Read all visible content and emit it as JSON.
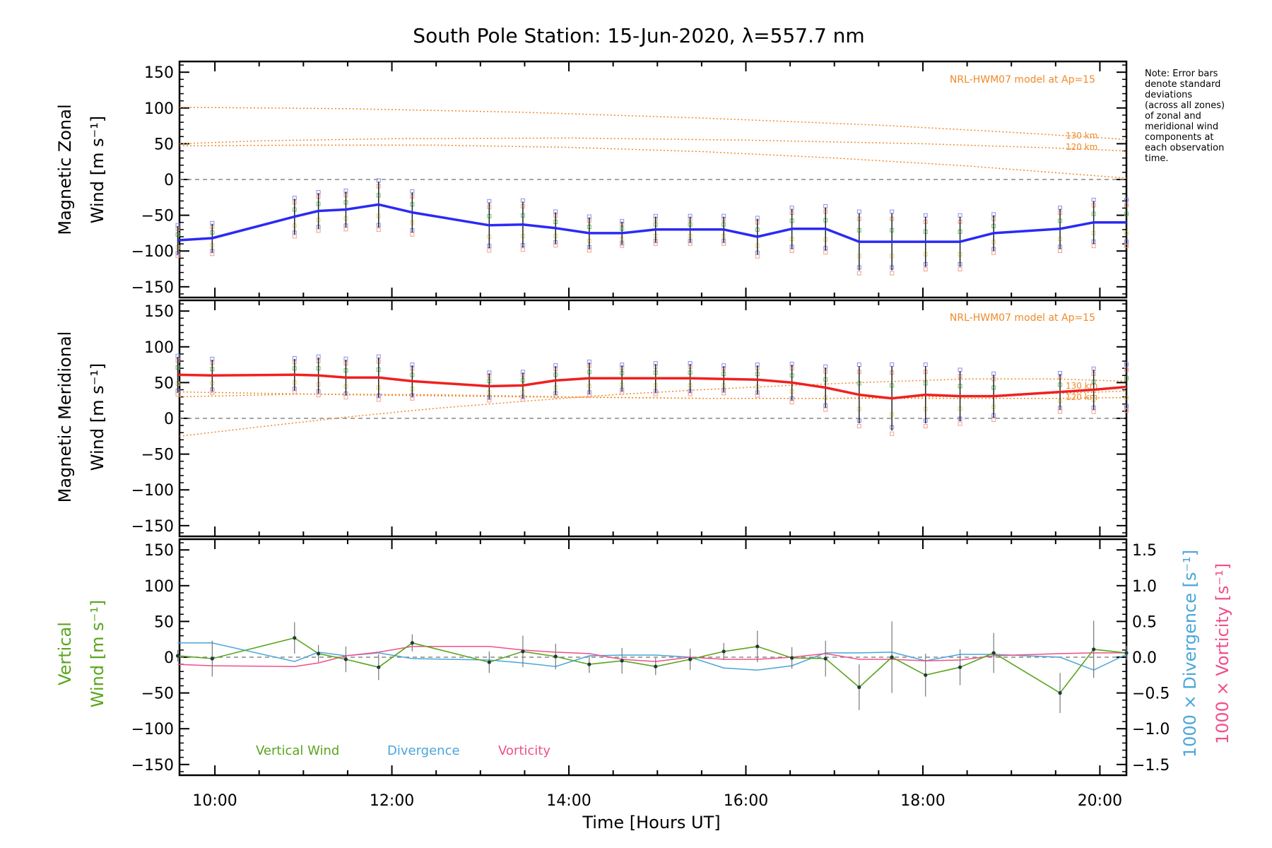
{
  "chart_data": {
    "type": "line",
    "title": "South Pole Station: 15-Jun-2020, λ=557.7 nm",
    "xlabel": "Time [Hours UT]",
    "xlim": [
      9.6,
      20.3
    ],
    "xticks": [
      10,
      12,
      14,
      16,
      18,
      20
    ],
    "xtick_labels": [
      "10:00",
      "12:00",
      "14:00",
      "16:00",
      "18:00",
      "20:00"
    ],
    "note": [
      "Note: Error bars",
      "denote standard",
      "deviations",
      "(across all zones)",
      "of zonal and",
      "meridional wind",
      "components at",
      "each observation",
      "time."
    ],
    "colors": {
      "zonal": "#2a2af5",
      "meridional": "#f02020",
      "model": "#f08a2a",
      "vertical": "#5aa51e",
      "divergence": "#4aa6d8",
      "vorticity": "#f0508a",
      "errorbar": "#222222",
      "zone_scatter_blue": "#8c8cf0",
      "zone_scatter_red": "#f0a090",
      "zone_scatter_yellow": "#e6d97a",
      "zone_scatter_green": "#6ac86a"
    },
    "times": [
      9.58,
      9.97,
      10.9,
      11.17,
      11.48,
      11.85,
      12.23,
      13.1,
      13.48,
      13.85,
      14.23,
      14.6,
      14.98,
      15.37,
      15.75,
      16.13,
      16.52,
      16.9,
      17.28,
      17.65,
      18.03,
      18.42,
      18.8,
      19.55,
      19.93,
      20.3
    ],
    "panels": [
      {
        "id": "zonal",
        "ylabel": [
          "Magnetic Zonal",
          "Wind [m s⁻¹]"
        ],
        "ylim": [
          -165,
          165
        ],
        "yticks": [
          150,
          100,
          50,
          0,
          -50,
          -100,
          -150
        ],
        "model_label": "NRL-HWM07 model at Ap=15",
        "model_curve_labels": [
          "130 km",
          "120 km"
        ],
        "series": {
          "name": "Magnetic Zonal Wind",
          "values": [
            -85,
            -82,
            -52,
            -44,
            -42,
            -35,
            -46,
            -64,
            -63,
            -68,
            -75,
            -75,
            -70,
            -70,
            -70,
            -80,
            -69,
            -69,
            -87,
            -87,
            -87,
            -87,
            -75,
            -69,
            -60,
            -60
          ],
          "errors": [
            20,
            20,
            25,
            25,
            25,
            32,
            28,
            32,
            32,
            22,
            22,
            16,
            18,
            18,
            18,
            25,
            28,
            30,
            40,
            40,
            35,
            35,
            25,
            28,
            30,
            30
          ]
        },
        "model_curves": [
          {
            "name": "130 km",
            "x": [
              9.6,
              11.5,
              13.5,
              15.5,
              17.5,
              19.0,
              20.3
            ],
            "y": [
              101,
              99,
              94,
              86,
              76,
              66,
              56
            ]
          },
          {
            "name": "120 km",
            "x": [
              9.6,
              10.5,
              12.0,
              14.0,
              16.0,
              18.0,
              19.5,
              20.3
            ],
            "y": [
              50,
              54,
              57,
              58,
              55,
              50,
              44,
              40
            ]
          },
          {
            "name": "low",
            "x": [
              9.6,
              11.0,
              12.5,
              14.0,
              15.5,
              17.0,
              18.5,
              20.3
            ],
            "y": [
              47,
              48,
              48,
              45,
              39,
              30,
              19,
              2
            ]
          }
        ]
      },
      {
        "id": "meridional",
        "ylabel": [
          "Magnetic Meridional",
          "Wind [m s⁻¹]"
        ],
        "ylim": [
          -165,
          165
        ],
        "yticks": [
          150,
          100,
          50,
          0,
          -50,
          -100,
          -150
        ],
        "model_label": "NRL-HWM07 model at Ap=15",
        "model_curve_labels": [
          "130 km",
          "120 km"
        ],
        "series": {
          "name": "Magnetic Meridional Wind",
          "values": [
            61,
            60,
            61,
            60,
            57,
            57,
            52,
            45,
            46,
            53,
            56,
            56,
            56,
            56,
            55,
            54,
            50,
            43,
            33,
            28,
            33,
            31,
            31,
            37,
            40,
            44
          ],
          "errors": [
            25,
            22,
            22,
            25,
            25,
            28,
            22,
            18,
            18,
            20,
            22,
            18,
            20,
            20,
            18,
            20,
            25,
            28,
            40,
            45,
            40,
            35,
            30,
            25,
            28,
            30
          ]
        },
        "model_curves": [
          {
            "name": "high",
            "x": [
              9.6,
              10.5,
              11.5,
              12.5,
              13.5,
              14.5,
              15.5,
              16.5,
              17.5,
              18.5,
              19.5,
              20.3
            ],
            "y": [
              -25,
              -12,
              2,
              14,
              24,
              33,
              40,
              46,
              51,
              55,
              55,
              52
            ]
          },
          {
            "name": "130 km",
            "x": [
              9.6,
              11.0,
              12.5,
              14.0,
              15.5,
              17.0,
              18.5,
              20.3
            ],
            "y": [
              30,
              34,
              33,
              30,
              28,
              28,
              31,
              38
            ]
          },
          {
            "name": "120 km",
            "x": [
              9.6,
              11.5,
              13.5,
              15.5,
              17.5,
              19.5,
              20.3
            ],
            "y": [
              37,
              33,
              30,
              28,
              28,
              28,
              29
            ]
          }
        ]
      },
      {
        "id": "vertical",
        "ylabel_vertical": [
          "Vertical",
          "Wind [m s⁻¹]"
        ],
        "ylim": [
          -165,
          165
        ],
        "yticks": [
          150,
          100,
          50,
          0,
          -50,
          -100,
          -150
        ],
        "y2lim": [
          -1.65,
          1.65
        ],
        "y2ticks": [
          1.5,
          1.0,
          0.5,
          0.0,
          -0.5,
          -1.0,
          -1.5
        ],
        "y2tick_labels": [
          "1.5",
          "1.0",
          "0.5",
          "0.0",
          "−0.5",
          "−1.0",
          "−1.5"
        ],
        "y2label_divergence": "1000 × Divergence [s⁻¹]",
        "y2label_vorticity": "1000 × Vorticity [s⁻¹]",
        "legend": [
          "Vertical Wind",
          "Divergence",
          "Vorticity"
        ],
        "vertical": {
          "values": [
            2,
            -2,
            27,
            5,
            -3,
            -14,
            20,
            -7,
            8,
            1,
            -10,
            -5,
            -13,
            -3,
            8,
            15,
            -1,
            -2,
            -42,
            0,
            -25,
            -14,
            6,
            -50,
            11,
            6
          ],
          "errors": [
            8,
            25,
            22,
            12,
            18,
            18,
            12,
            15,
            22,
            18,
            12,
            18,
            12,
            15,
            12,
            22,
            15,
            25,
            32,
            50,
            30,
            25,
            28,
            28,
            40,
            10
          ]
        },
        "divergence": [
          0.2,
          0.2,
          -0.06,
          0.07,
          0.02,
          0.06,
          -0.02,
          -0.04,
          -0.08,
          -0.13,
          0.02,
          0.03,
          0.03,
          0.0,
          -0.15,
          -0.18,
          -0.12,
          0.06,
          0.06,
          0.07,
          -0.05,
          0.04,
          0.04,
          0.0,
          -0.18,
          0.04
        ],
        "vorticity": [
          -0.1,
          -0.12,
          -0.13,
          -0.08,
          0.02,
          0.07,
          0.15,
          0.15,
          0.1,
          0.07,
          0.05,
          -0.03,
          -0.06,
          0.0,
          -0.03,
          -0.03,
          0.0,
          0.05,
          -0.03,
          -0.03,
          -0.05,
          -0.04,
          0.02,
          0.05,
          0.06,
          0.06
        ]
      }
    ]
  }
}
